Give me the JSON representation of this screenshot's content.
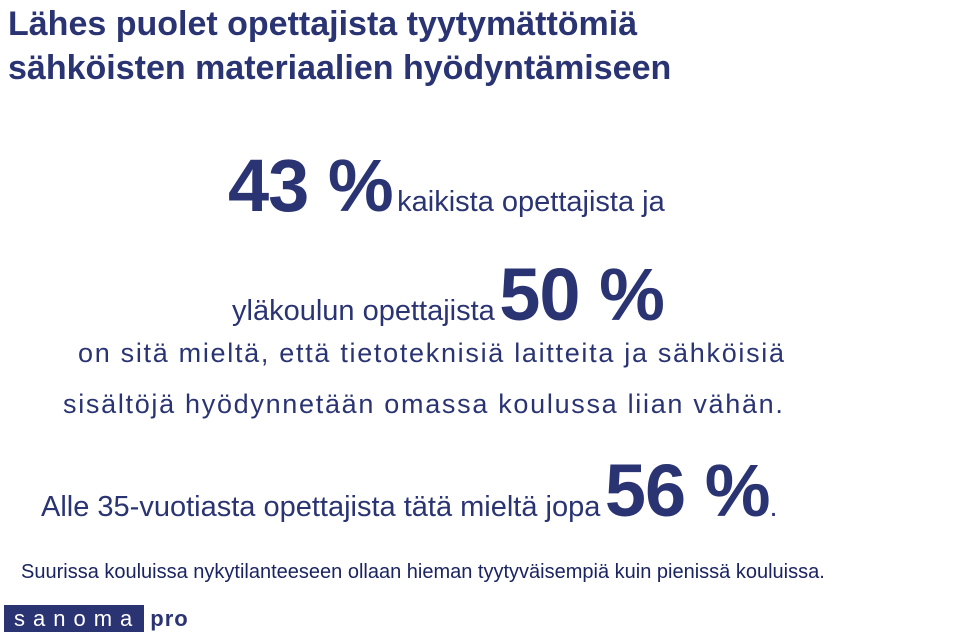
{
  "title": {
    "line1": "Lähes puolet opettajista tyytymättömiä",
    "line2": "sähköisten materiaalien hyödyntämiseen"
  },
  "stat_all": {
    "value": "43 %",
    "text": "kaikista opettajista ja"
  },
  "stat_upper": {
    "text": "yläkoulun opettajista",
    "value": "50 %"
  },
  "body": {
    "line1": "on sitä mieltä, että tietoteknisiä laitteita ja sähköisiä",
    "line2": "sisältöjä hyödynnetään omassa koulussa liian vähän."
  },
  "stat_young": {
    "text": "Alle 35-vuotiasta opettajista tätä mieltä jopa",
    "value": "56 %",
    "suffix": "."
  },
  "footnote": "Suurissa kouluissa nykytilanteeseen ollaan hieman tyytyväisempiä kuin pienissä kouluissa.",
  "logo": {
    "brand": "sanoma",
    "suffix": "pro"
  },
  "colors": {
    "primary": "#2a3473",
    "text": "#1a2462",
    "background": "#ffffff"
  }
}
